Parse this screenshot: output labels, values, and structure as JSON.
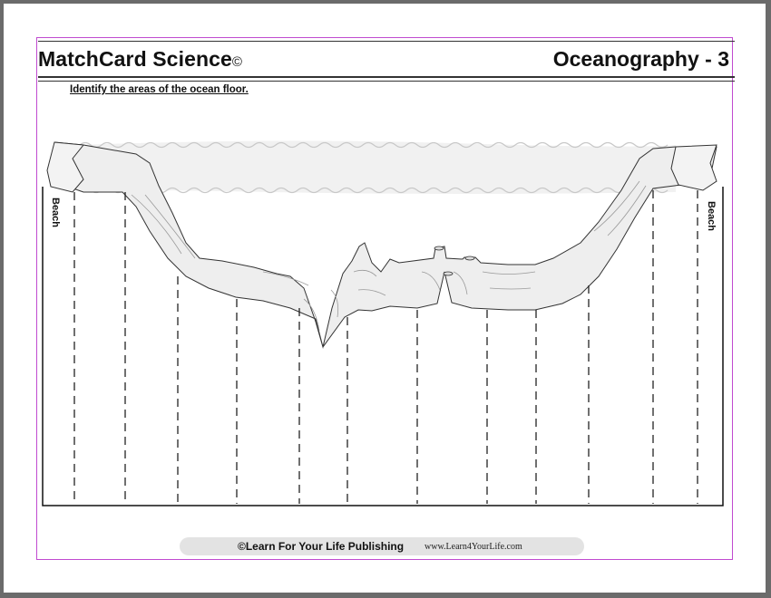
{
  "header": {
    "title": "MatchCard Science",
    "copyright_mark": "©",
    "topic": "Oceanography - 3"
  },
  "instructions": "Identify the areas of the ocean floor.",
  "diagram": {
    "beach_left_label": "Beach",
    "beach_right_label": "Beach"
  },
  "footer": {
    "publisher": "©Learn For Your Life Publishing",
    "url": "www.Learn4YourLife.com"
  }
}
